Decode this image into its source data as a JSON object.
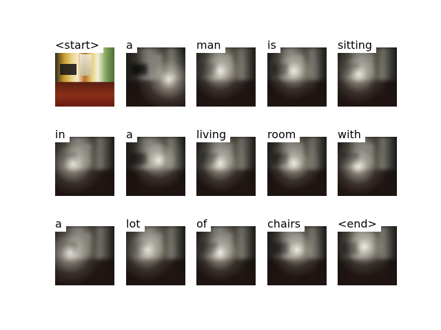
{
  "words": [
    "<start>",
    "a",
    "man",
    "is",
    "sitting",
    "in",
    "a",
    "living",
    "room",
    "with",
    "a",
    "lot",
    "of",
    "chairs",
    "<end>"
  ]
}
